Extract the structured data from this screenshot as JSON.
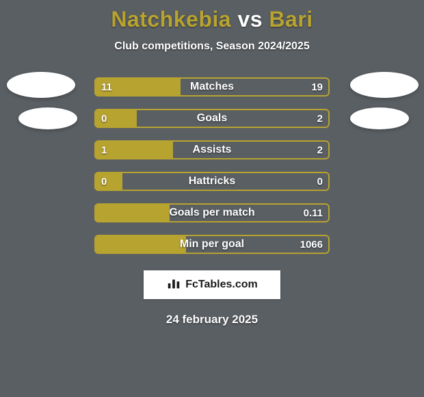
{
  "background_color": "#5a5f63",
  "header": {
    "player1": "Natchkebia",
    "vs": " vs ",
    "player2": "Bari",
    "player1_color": "#b7a330",
    "vs_color": "#ffffff",
    "player2_color": "#b7a330",
    "subtitle": "Club competitions, Season 2024/2025"
  },
  "bar_style": {
    "left_color": "#b7a330",
    "right_color": "#5a5f63",
    "track_color": "#5a5f63",
    "border_color": "#b7a330",
    "border_width": 2,
    "height": 28,
    "radius": 6,
    "label_fontsize": 16,
    "value_fontsize": 15,
    "row_gap": 18,
    "bars_width": 344
  },
  "stats": [
    {
      "label": "Matches",
      "left_value": "11",
      "right_value": "19",
      "left_pct": 36.7,
      "right_pct": 63.3
    },
    {
      "label": "Goals",
      "left_value": "0",
      "right_value": "2",
      "left_pct": 18.0,
      "right_pct": 82.0
    },
    {
      "label": "Assists",
      "left_value": "1",
      "right_value": "2",
      "left_pct": 33.3,
      "right_pct": 66.7
    },
    {
      "label": "Hattricks",
      "left_value": "0",
      "right_value": "0",
      "left_pct": 12.0,
      "right_pct": 88.0
    },
    {
      "label": "Goals per match",
      "left_value": "",
      "right_value": "0.11",
      "left_pct": 32.0,
      "right_pct": 68.0
    },
    {
      "label": "Min per goal",
      "left_value": "",
      "right_value": "1066",
      "left_pct": 39.0,
      "right_pct": 61.0
    }
  ],
  "badge": {
    "text": "FcTables.com",
    "background": "#ffffff",
    "text_color": "#1a1a1a"
  },
  "date": "24 february 2025",
  "avatar_color": "#ffffff"
}
